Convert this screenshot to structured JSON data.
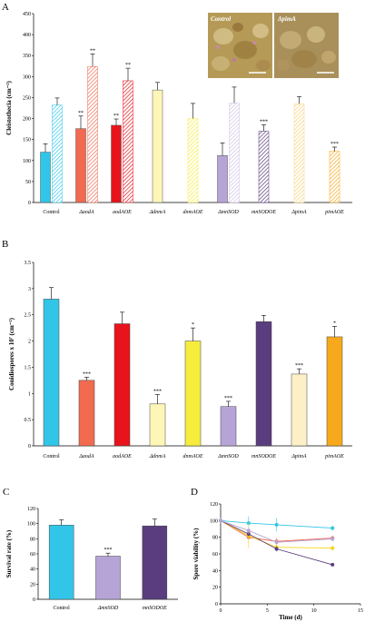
{
  "panels": {
    "A": "A",
    "B": "B",
    "C": "C",
    "D": "D"
  },
  "inset": {
    "left_label": "Control",
    "right_label": "ΔpimA"
  },
  "colors": {
    "control": "#31c6e8",
    "aod": "#f26a4f",
    "aodOE": "#e8131b",
    "dnm": "#fef6b7",
    "dnmOE": "#f6ec3c",
    "mnSOD": "#b7a4d6",
    "mnSODOE": "#5a3d7e",
    "pim": "#fdf0c7",
    "pimOE": "#f7a81b"
  },
  "chart_data": [
    {
      "id": "A",
      "type": "bar",
      "ylabel": "Cleistothecia (cm⁻²)",
      "ylim": [
        0,
        450
      ],
      "yticks": [
        0,
        50,
        100,
        150,
        200,
        250,
        300,
        350,
        400,
        450
      ],
      "categories": [
        "Control",
        "ΔaodA",
        "aodAOE",
        "ΔdnmA",
        "dnmAOE",
        "ΔmnSOD",
        "mnSODOE",
        "ΔpimA",
        "pimAOE"
      ],
      "bars": [
        {
          "category": "Control",
          "value": 120,
          "error": 20,
          "style": "solid",
          "color": "#31c6e8",
          "sig": ""
        },
        {
          "category": "Control",
          "value": 232,
          "error": 17,
          "style": "hatched",
          "color": "#31c6e8",
          "sig": ""
        },
        {
          "category": "ΔaodA",
          "value": 176,
          "error": 30,
          "style": "solid",
          "color": "#f26a4f",
          "sig": "**"
        },
        {
          "category": "ΔaodA",
          "value": 324,
          "error": 30,
          "style": "hatched",
          "color": "#f26a4f",
          "sig": "**"
        },
        {
          "category": "aodAOE",
          "value": 184,
          "error": 15,
          "style": "solid",
          "color": "#e8131b",
          "sig": "**"
        },
        {
          "category": "aodAOE",
          "value": 290,
          "error": 30,
          "style": "hatched",
          "color": "#e8131b",
          "sig": "**"
        },
        {
          "category": "ΔdnmA",
          "value": 268,
          "error": 18,
          "style": "solid",
          "color": "#fef6b7",
          "sig": ""
        },
        {
          "category": "dnmAOE",
          "value": 200,
          "error": 36,
          "style": "hatched",
          "color": "#f6ec3c",
          "sig": ""
        },
        {
          "category": "ΔmnSOD",
          "value": 112,
          "error": 30,
          "style": "solid",
          "color": "#b7a4d6",
          "sig": ""
        },
        {
          "category": "ΔmnSOD",
          "value": 237,
          "error": 38,
          "style": "hatched",
          "color": "#cfc3e6",
          "sig": ""
        },
        {
          "category": "mnSODOE",
          "value": 170,
          "error": 15,
          "style": "hatched",
          "color": "#5a3d7e",
          "sig": "***"
        },
        {
          "category": "ΔpimA",
          "value": 235,
          "error": 17,
          "style": "hatched",
          "color": "#f7d37a",
          "sig": ""
        },
        {
          "category": "pimAOE",
          "value": 122,
          "error": 10,
          "style": "hatched",
          "color": "#f7a81b",
          "sig": "***"
        }
      ]
    },
    {
      "id": "B",
      "type": "bar",
      "ylabel": "Conidiospores x 10⁷ (cm⁻²)",
      "ylim": [
        0,
        3.5
      ],
      "yticks": [
        0,
        0.5,
        1,
        1.5,
        2,
        2.5,
        3,
        3.5
      ],
      "categories": [
        "Control",
        "ΔaodA",
        "aodAOE",
        "ΔdnmA",
        "dnmAOE",
        "ΔmnSOD",
        "mnSODOE",
        "ΔpimA",
        "pimAOE"
      ],
      "values": [
        2.8,
        1.25,
        2.33,
        0.8,
        2.0,
        0.75,
        2.37,
        1.37,
        2.08
      ],
      "errors": [
        0.22,
        0.06,
        0.22,
        0.18,
        0.25,
        0.1,
        0.12,
        0.1,
        0.2
      ],
      "sig": [
        "",
        "***",
        "",
        "***",
        "*",
        "***",
        "",
        "***",
        "*"
      ],
      "colors": [
        "#31c6e8",
        "#f26a4f",
        "#e8131b",
        "#fef6b7",
        "#f6ec3c",
        "#b7a4d6",
        "#5a3d7e",
        "#fdf0c7",
        "#f7a81b"
      ]
    },
    {
      "id": "C",
      "type": "bar",
      "ylabel": "Survival rate (%)",
      "ylim": [
        0,
        120
      ],
      "yticks": [
        0,
        20,
        40,
        60,
        80,
        100,
        120
      ],
      "categories": [
        "Control",
        "ΔmnSOD",
        "mnSODOE"
      ],
      "values": [
        98,
        57,
        97
      ],
      "errors": [
        7,
        4,
        9
      ],
      "sig": [
        "",
        "***",
        ""
      ],
      "colors": [
        "#31c6e8",
        "#b7a4d6",
        "#5a3d7e"
      ]
    },
    {
      "id": "D",
      "type": "line",
      "xlabel": "Time (d)",
      "ylabel": "Spore viability (%)",
      "xlim": [
        0,
        15
      ],
      "ylim": [
        0,
        120
      ],
      "xticks": [
        0,
        5,
        10,
        15
      ],
      "yticks": [
        0,
        20,
        40,
        60,
        80,
        100,
        120
      ],
      "x": [
        0,
        3,
        6,
        12
      ],
      "series": [
        {
          "color": "#31c6e8",
          "values": [
            100,
            97,
            95,
            91
          ],
          "errors": [
            3,
            8,
            8,
            3
          ]
        },
        {
          "color": "#f26a4f",
          "values": [
            100,
            80,
            75,
            79
          ],
          "errors": [
            3,
            3,
            4,
            3
          ]
        },
        {
          "color": "#f6d41c",
          "values": [
            100,
            82,
            68,
            67
          ],
          "errors": [
            3,
            15,
            4,
            3
          ]
        },
        {
          "color": "#5a3d7e",
          "values": [
            100,
            84,
            66,
            47
          ],
          "errors": [
            3,
            3,
            3,
            2
          ]
        },
        {
          "color": "#b7a4d6",
          "values": [
            100,
            88,
            74,
            78
          ],
          "errors": [
            3,
            4,
            3,
            3
          ]
        }
      ]
    }
  ]
}
